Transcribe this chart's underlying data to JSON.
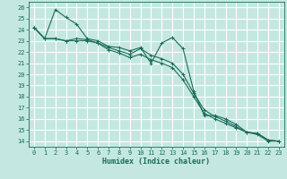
{
  "xlabel": "Humidex (Indice chaleur)",
  "xlim": [
    -0.5,
    23.5
  ],
  "ylim": [
    13.5,
    26.5
  ],
  "yticks": [
    14,
    15,
    16,
    17,
    18,
    19,
    20,
    21,
    22,
    23,
    24,
    25,
    26
  ],
  "xticks": [
    0,
    1,
    2,
    3,
    4,
    5,
    6,
    7,
    8,
    9,
    10,
    11,
    12,
    13,
    14,
    15,
    16,
    17,
    18,
    19,
    20,
    21,
    22,
    23
  ],
  "bg_color": "#c4e8e1",
  "grid_color": "#ffffff",
  "line_color": "#1a6b5a",
  "line1_y": [
    24.2,
    23.2,
    25.8,
    25.1,
    24.5,
    23.2,
    23.0,
    22.5,
    22.4,
    22.1,
    22.4,
    21.0,
    22.8,
    23.3,
    22.3,
    18.5,
    16.3,
    16.3,
    16.0,
    15.5,
    14.8,
    14.7,
    14.1,
    14.0
  ],
  "line2_y": [
    24.2,
    23.2,
    23.2,
    23.0,
    23.2,
    23.1,
    22.8,
    22.4,
    22.1,
    21.8,
    22.3,
    21.7,
    21.4,
    21.0,
    20.0,
    18.3,
    16.8,
    16.2,
    15.8,
    15.3,
    14.8,
    14.7,
    14.1,
    14.0
  ],
  "line3_y": [
    24.2,
    23.2,
    23.2,
    23.0,
    23.0,
    23.0,
    22.8,
    22.2,
    21.9,
    21.5,
    21.8,
    21.3,
    21.0,
    20.6,
    19.5,
    18.0,
    16.5,
    16.0,
    15.6,
    15.2,
    14.8,
    14.6,
    14.0,
    14.0
  ]
}
